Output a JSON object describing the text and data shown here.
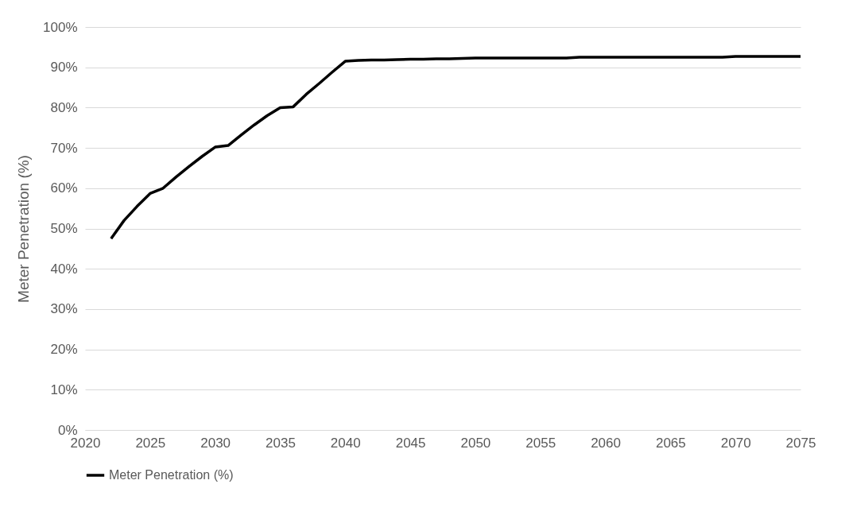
{
  "chart_data": {
    "type": "line",
    "ylabel": "Meter Penetration (%)",
    "x": [
      2022,
      2023,
      2024,
      2025,
      2026,
      2027,
      2028,
      2029,
      2030,
      2031,
      2032,
      2033,
      2034,
      2035,
      2036,
      2037,
      2038,
      2039,
      2040,
      2041,
      2042,
      2043,
      2044,
      2045,
      2046,
      2047,
      2048,
      2049,
      2050,
      2051,
      2052,
      2053,
      2054,
      2055,
      2056,
      2057,
      2058,
      2059,
      2060,
      2061,
      2062,
      2063,
      2064,
      2065,
      2066,
      2067,
      2068,
      2069,
      2070,
      2071,
      2072,
      2073,
      2074,
      2075
    ],
    "series": [
      {
        "name": "Meter Penetration (%)",
        "color": "#000000",
        "values": [
          47.5,
          52,
          55.5,
          58.7,
          60,
          62.8,
          65.4,
          67.9,
          70.2,
          70.6,
          73.2,
          75.7,
          78,
          80,
          80.2,
          83.3,
          86,
          88.8,
          91.5,
          91.7,
          91.8,
          91.8,
          91.9,
          92,
          92,
          92.1,
          92.1,
          92.2,
          92.3,
          92.3,
          92.3,
          92.3,
          92.3,
          92.3,
          92.3,
          92.3,
          92.5,
          92.5,
          92.5,
          92.5,
          92.5,
          92.5,
          92.5,
          92.5,
          92.5,
          92.5,
          92.5,
          92.5,
          92.7,
          92.7,
          92.7,
          92.7,
          92.7,
          92.7
        ]
      }
    ],
    "xlim": [
      2020,
      2075
    ],
    "xticks": [
      2020,
      2025,
      2030,
      2035,
      2040,
      2045,
      2050,
      2055,
      2060,
      2065,
      2070,
      2075
    ],
    "ylim": [
      0,
      100
    ],
    "yticks": [
      {
        "value": 0,
        "label": "0%"
      },
      {
        "value": 10,
        "label": "10%"
      },
      {
        "value": 20,
        "label": "20%"
      },
      {
        "value": 30,
        "label": "30%"
      },
      {
        "value": 40,
        "label": "40%"
      },
      {
        "value": 50,
        "label": "50%"
      },
      {
        "value": 60,
        "label": "60%"
      },
      {
        "value": 70,
        "label": "70%"
      },
      {
        "value": 80,
        "label": "80%"
      },
      {
        "value": 90,
        "label": "90%"
      },
      {
        "value": 100,
        "label": "100%"
      }
    ],
    "grid": "y",
    "legend": "bottom",
    "line_style": "solid"
  }
}
